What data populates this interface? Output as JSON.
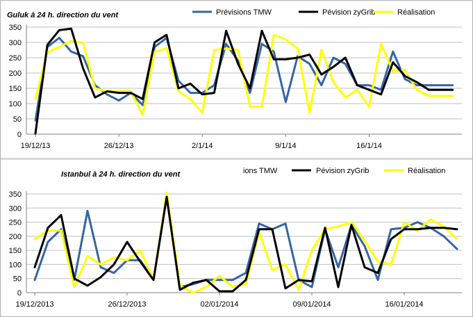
{
  "colors": {
    "tmw": "#3465a4",
    "zygrib": "#000000",
    "real": "#ffff00",
    "grid": "#bfbfbf"
  },
  "chart_data": [
    {
      "type": "line",
      "title": "Guluk à 24 h. direction du vent",
      "ylim": [
        0,
        350
      ],
      "yticks": [
        0,
        50,
        100,
        150,
        200,
        250,
        300,
        350
      ],
      "x_labels": [
        "19/12/13",
        "26/12/13",
        "2/1/14",
        "9/1/14",
        "16/1/14"
      ],
      "x_label_index": [
        0,
        7,
        14,
        21,
        28
      ],
      "n_points": 36,
      "grid": true,
      "legend": "top",
      "series": [
        {
          "name": "Prévisions TMW",
          "key": "tmw",
          "values": [
            45,
            285,
            315,
            270,
            255,
            160,
            130,
            110,
            135,
            95,
            285,
            315,
            175,
            135,
            135,
            160,
            295,
            240,
            135,
            295,
            270,
            105,
            255,
            230,
            160,
            250,
            230,
            160,
            160,
            145,
            270,
            180,
            160,
            160,
            160,
            160
          ]
        },
        {
          "name": "Pévision zyGrib",
          "key": "zygrib",
          "values": [
            2,
            292,
            340,
            345,
            215,
            120,
            140,
            135,
            135,
            115,
            300,
            325,
            150,
            165,
            130,
            135,
            338,
            230,
            150,
            338,
            245,
            245,
            250,
            260,
            195,
            220,
            250,
            160,
            145,
            130,
            235,
            190,
            170,
            145,
            145,
            145
          ]
        },
        {
          "name": "Réalisation",
          "key": "real",
          "values": [
            115,
            268,
            285,
            305,
            300,
            150,
            140,
            140,
            140,
            62,
            270,
            280,
            140,
            115,
            70,
            275,
            280,
            275,
            90,
            90,
            325,
            310,
            280,
            70,
            275,
            170,
            120,
            145,
            90,
            295,
            205,
            210,
            145,
            125,
            125,
            125
          ]
        }
      ]
    },
    {
      "type": "line",
      "title": "Istanbul à 24 h. direction du vent",
      "ylim": [
        0,
        350
      ],
      "yticks": [
        0,
        50,
        100,
        150,
        200,
        250,
        300,
        350
      ],
      "x_labels": [
        "19/12/2013",
        "26/12/2013",
        "02/01/2014",
        "09/01/2014",
        "16/01/2014"
      ],
      "x_label_index": [
        0,
        7,
        14,
        21,
        28
      ],
      "n_points": 33,
      "grid": true,
      "legend": "top",
      "series": [
        {
          "name": "ions TMW",
          "key": "tmw",
          "values": [
            45,
            180,
            225,
            45,
            290,
            90,
            70,
            115,
            115,
            45,
            340,
            20,
            30,
            45,
            45,
            45,
            70,
            245,
            225,
            245,
            45,
            20,
            225,
            90,
            240,
            165,
            45,
            225,
            230,
            250,
            230,
            200,
            155
          ]
        },
        {
          "name": "Pévision zyGrib",
          "key": "zygrib",
          "values": [
            90,
            230,
            275,
            50,
            25,
            55,
            100,
            180,
            110,
            45,
            340,
            10,
            35,
            45,
            5,
            5,
            45,
            225,
            225,
            15,
            45,
            40,
            230,
            20,
            240,
            90,
            70,
            190,
            225,
            225,
            230,
            230,
            225
          ]
        },
        {
          "name": "Réalisation",
          "key": "real",
          "values": [
            190,
            220,
            220,
            20,
            130,
            100,
            125,
            115,
            150,
            45,
            355,
            25,
            0,
            20,
            60,
            20,
            30,
            215,
            80,
            100,
            10,
            150,
            225,
            235,
            250,
            185,
            110,
            100,
            250,
            220,
            260,
            235,
            190
          ]
        }
      ]
    }
  ]
}
